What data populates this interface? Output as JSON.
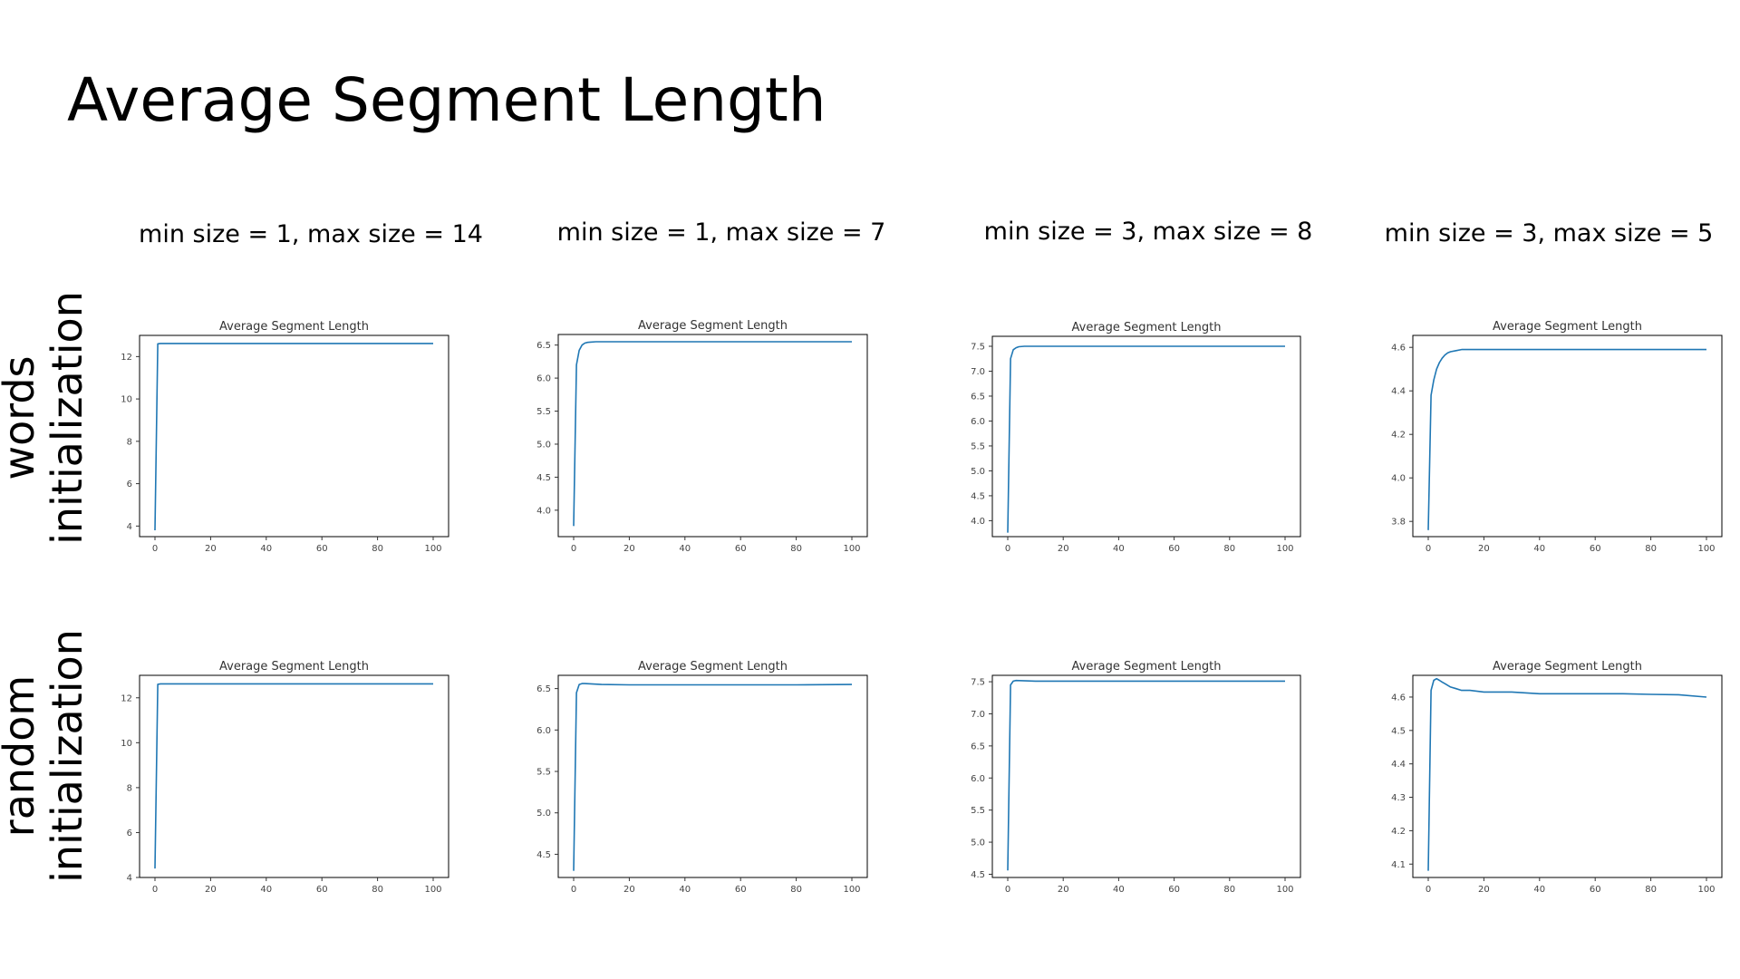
{
  "title": "Average Segment Length",
  "columns": [
    "min size = 1, max size = 14",
    "min size = 1, max size = 7",
    "min size = 3, max size = 8",
    "min size = 3, max size = 5"
  ],
  "rows": [
    {
      "line1": "words",
      "line2": "initialization"
    },
    {
      "line1": "random",
      "line2": "initialization"
    }
  ],
  "colors": {
    "line": "#1f77b4",
    "frame": "#000000"
  },
  "chart_data": [
    {
      "type": "line",
      "title": "Average Segment Length",
      "xlim": [
        0,
        100
      ],
      "xticks": [
        0,
        20,
        40,
        60,
        80,
        100
      ],
      "ylim": [
        3.5,
        13.0
      ],
      "yticks": [
        4,
        6,
        8,
        10,
        12
      ],
      "x": [
        0,
        1,
        2,
        3,
        100
      ],
      "y": [
        3.8,
        12.6,
        12.62,
        12.62,
        12.62
      ]
    },
    {
      "type": "line",
      "title": "Average Segment Length",
      "xlim": [
        0,
        100
      ],
      "xticks": [
        0,
        20,
        40,
        60,
        80,
        100
      ],
      "ylim": [
        3.6,
        6.66
      ],
      "yticks": [
        4.0,
        4.5,
        5.0,
        5.5,
        6.0,
        6.5
      ],
      "x": [
        0,
        1,
        2,
        3,
        4,
        5,
        6,
        8,
        10,
        15,
        20,
        100
      ],
      "y": [
        3.76,
        6.2,
        6.42,
        6.5,
        6.53,
        6.54,
        6.545,
        6.55,
        6.55,
        6.55,
        6.55,
        6.55
      ]
    },
    {
      "type": "line",
      "title": "Average Segment Length",
      "xlim": [
        0,
        100
      ],
      "xticks": [
        0,
        20,
        40,
        60,
        80,
        100
      ],
      "ylim": [
        3.68,
        7.7
      ],
      "yticks": [
        4.0,
        4.5,
        5.0,
        5.5,
        6.0,
        6.5,
        7.0,
        7.5
      ],
      "x": [
        0,
        1,
        2,
        3,
        4,
        6,
        10,
        100
      ],
      "y": [
        3.76,
        7.25,
        7.43,
        7.47,
        7.49,
        7.5,
        7.5,
        7.5
      ]
    },
    {
      "type": "line",
      "title": "Average Segment Length",
      "xlim": [
        0,
        100
      ],
      "xticks": [
        0,
        20,
        40,
        60,
        80,
        100
      ],
      "ylim": [
        3.73,
        4.655
      ],
      "yticks": [
        3.8,
        4.0,
        4.2,
        4.4,
        4.6
      ],
      "x": [
        0,
        1,
        2,
        3,
        4,
        5,
        6,
        7,
        8,
        10,
        12,
        15,
        20,
        30,
        40,
        50,
        60,
        70,
        80,
        90,
        100
      ],
      "y": [
        3.76,
        4.38,
        4.45,
        4.5,
        4.53,
        4.55,
        4.565,
        4.575,
        4.58,
        4.585,
        4.59,
        4.59,
        4.59,
        4.59,
        4.59,
        4.59,
        4.59,
        4.59,
        4.59,
        4.59,
        4.59
      ]
    },
    {
      "type": "line",
      "title": "Average Segment Length",
      "xlim": [
        0,
        100
      ],
      "xticks": [
        0,
        20,
        40,
        60,
        80,
        100
      ],
      "ylim": [
        4.0,
        13.0
      ],
      "yticks": [
        4,
        6,
        8,
        10,
        12
      ],
      "x": [
        0,
        1,
        2,
        100
      ],
      "y": [
        4.4,
        12.6,
        12.62,
        12.62
      ]
    },
    {
      "type": "line",
      "title": "Average Segment Length",
      "xlim": [
        0,
        100
      ],
      "xticks": [
        0,
        20,
        40,
        60,
        80,
        100
      ],
      "ylim": [
        4.22,
        6.66
      ],
      "yticks": [
        4.5,
        5.0,
        5.5,
        6.0,
        6.5
      ],
      "x": [
        0,
        1,
        2,
        3,
        4,
        10,
        20,
        40,
        60,
        80,
        100
      ],
      "y": [
        4.3,
        6.45,
        6.55,
        6.56,
        6.56,
        6.55,
        6.545,
        6.545,
        6.545,
        6.545,
        6.55
      ]
    },
    {
      "type": "line",
      "title": "Average Segment Length",
      "xlim": [
        0,
        100
      ],
      "xticks": [
        0,
        20,
        40,
        60,
        80,
        100
      ],
      "ylim": [
        4.45,
        7.6
      ],
      "yticks": [
        4.5,
        5.0,
        5.5,
        6.0,
        6.5,
        7.0,
        7.5
      ],
      "x": [
        0,
        1,
        2,
        3,
        10,
        100
      ],
      "y": [
        4.56,
        7.45,
        7.51,
        7.52,
        7.51,
        7.51
      ]
    },
    {
      "type": "line",
      "title": "Average Segment Length",
      "xlim": [
        0,
        100
      ],
      "xticks": [
        0,
        20,
        40,
        60,
        80,
        100
      ],
      "ylim": [
        4.06,
        4.665
      ],
      "yticks": [
        4.1,
        4.2,
        4.3,
        4.4,
        4.5,
        4.6
      ],
      "x": [
        0,
        1,
        2,
        3,
        4,
        5,
        6,
        8,
        10,
        12,
        15,
        20,
        30,
        40,
        50,
        60,
        70,
        80,
        90,
        100
      ],
      "y": [
        4.08,
        4.62,
        4.65,
        4.655,
        4.65,
        4.645,
        4.64,
        4.63,
        4.625,
        4.62,
        4.62,
        4.615,
        4.615,
        4.61,
        4.61,
        4.61,
        4.61,
        4.608,
        4.607,
        4.6
      ]
    }
  ]
}
